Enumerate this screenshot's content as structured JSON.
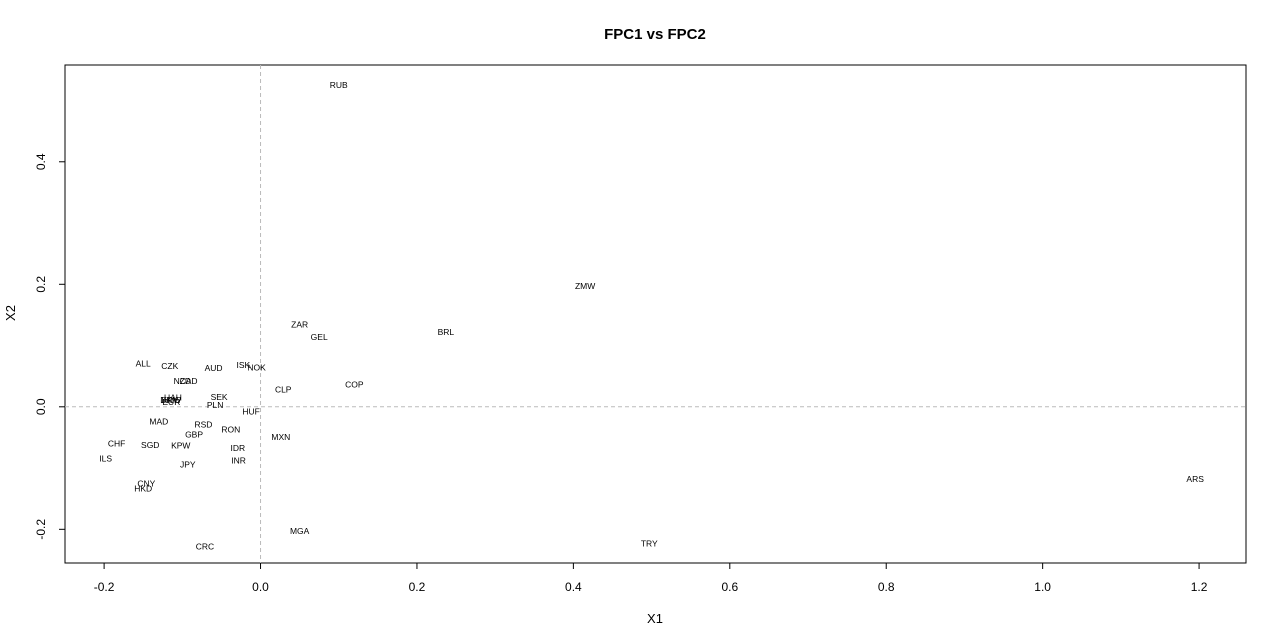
{
  "chart_data": {
    "type": "scatter",
    "title": "FPC1 vs FPC2",
    "xlabel": "X1",
    "ylabel": "X2",
    "xlim": [
      -0.25,
      1.26
    ],
    "ylim": [
      -0.255,
      0.558
    ],
    "x_ticks": [
      -0.2,
      0.0,
      0.2,
      0.4,
      0.6,
      0.8,
      1.0,
      1.2
    ],
    "x_tick_labels": [
      "-0.2",
      "0.0",
      "0.2",
      "0.4",
      "0.6",
      "0.8",
      "1.0",
      "1.2"
    ],
    "y_ticks": [
      -0.2,
      0.0,
      0.2,
      0.4
    ],
    "y_tick_labels": [
      "-0.2",
      "0.0",
      "0.2",
      "0.4"
    ],
    "reference_lines": {
      "x": 0,
      "y": 0,
      "style": "dashed"
    },
    "grid": false,
    "points": [
      {
        "label": "RUB",
        "x": 0.1,
        "y": 0.525
      },
      {
        "label": "ZMW",
        "x": 0.415,
        "y": 0.197
      },
      {
        "label": "ZAR",
        "x": 0.05,
        "y": 0.134
      },
      {
        "label": "GEL",
        "x": 0.075,
        "y": 0.114
      },
      {
        "label": "BRL",
        "x": 0.237,
        "y": 0.122
      },
      {
        "label": "ALL",
        "x": -0.15,
        "y": 0.071
      },
      {
        "label": "CZK",
        "x": -0.116,
        "y": 0.067
      },
      {
        "label": "AUD",
        "x": -0.06,
        "y": 0.063
      },
      {
        "label": "ISK",
        "x": -0.022,
        "y": 0.068
      },
      {
        "label": "NOK",
        "x": -0.005,
        "y": 0.064
      },
      {
        "label": "NZD",
        "x": -0.1,
        "y": 0.042
      },
      {
        "label": "CAD",
        "x": -0.092,
        "y": 0.042
      },
      {
        "label": "COP",
        "x": 0.12,
        "y": 0.036
      },
      {
        "label": "CLP",
        "x": 0.029,
        "y": 0.028
      },
      {
        "label": "SEK",
        "x": -0.053,
        "y": 0.016
      },
      {
        "label": "PLN",
        "x": -0.058,
        "y": 0.003
      },
      {
        "label": "HUF",
        "x": -0.012,
        "y": -0.008
      },
      {
        "label": "UAH",
        "x": -0.112,
        "y": 0.015
      },
      {
        "label": "KRW",
        "x": -0.114,
        "y": 0.011
      },
      {
        "label": "DKK",
        "x": -0.117,
        "y": 0.011
      },
      {
        "label": "EUR",
        "x": -0.114,
        "y": 0.008
      },
      {
        "label": "MAD",
        "x": -0.13,
        "y": -0.024
      },
      {
        "label": "RSD",
        "x": -0.073,
        "y": -0.029
      },
      {
        "label": "RON",
        "x": -0.038,
        "y": -0.037
      },
      {
        "label": "GBP",
        "x": -0.085,
        "y": -0.045
      },
      {
        "label": "MXN",
        "x": 0.026,
        "y": -0.049
      },
      {
        "label": "CHF",
        "x": -0.184,
        "y": -0.06
      },
      {
        "label": "SGD",
        "x": -0.141,
        "y": -0.062
      },
      {
        "label": "KPW",
        "x": -0.102,
        "y": -0.063
      },
      {
        "label": "IDR",
        "x": -0.029,
        "y": -0.067
      },
      {
        "label": "ILS",
        "x": -0.198,
        "y": -0.084
      },
      {
        "label": "INR",
        "x": -0.028,
        "y": -0.088
      },
      {
        "label": "JPY",
        "x": -0.093,
        "y": -0.094
      },
      {
        "label": "CNY",
        "x": -0.146,
        "y": -0.125
      },
      {
        "label": "HKD",
        "x": -0.15,
        "y": -0.133
      },
      {
        "label": "ARS",
        "x": 1.195,
        "y": -0.118
      },
      {
        "label": "MGA",
        "x": 0.05,
        "y": -0.203
      },
      {
        "label": "TRY",
        "x": 0.497,
        "y": -0.223
      },
      {
        "label": "CRC",
        "x": -0.071,
        "y": -0.228
      }
    ]
  }
}
